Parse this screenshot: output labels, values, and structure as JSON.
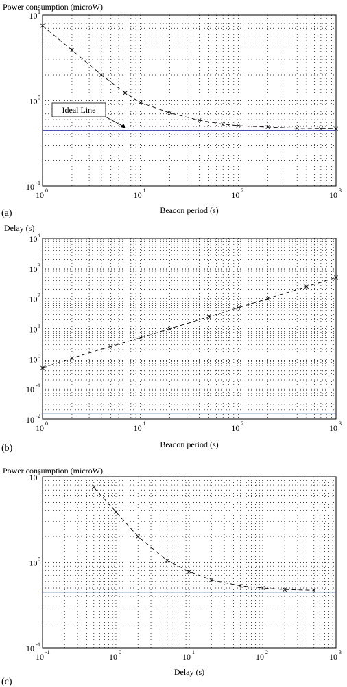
{
  "colors": {
    "ideal_line": "#2b3aa8",
    "grid": "#000000",
    "series": "#000000",
    "background": "#ffffff"
  },
  "chart_data": [
    {
      "type": "line",
      "panel_label": "(a)",
      "title": "",
      "ylabel": "Power consumption (microW)",
      "xlabel": "Beacon period (s)",
      "x_scale": "log",
      "y_scale": "log",
      "xlim": [
        1,
        1000
      ],
      "ylim": [
        0.1,
        10
      ],
      "x_ticks": [
        {
          "base": "10",
          "exp": "0"
        },
        {
          "base": "10",
          "exp": "1"
        },
        {
          "base": "10",
          "exp": "2"
        },
        {
          "base": "10",
          "exp": "3"
        }
      ],
      "y_ticks": [
        {
          "base": "10",
          "exp": "-1"
        },
        {
          "base": "10",
          "exp": "0"
        },
        {
          "base": "10",
          "exp": "1"
        }
      ],
      "grid": true,
      "annotation": {
        "text": "Ideal Line",
        "points_to": [
          8,
          0.45
        ]
      },
      "series": [
        {
          "style": "dashed-x",
          "x": [
            1,
            2,
            4,
            7,
            10,
            20,
            40,
            70,
            100,
            200,
            400,
            700,
            1000
          ],
          "y": [
            7.5,
            3.9,
            2.0,
            1.23,
            0.95,
            0.72,
            0.59,
            0.53,
            0.51,
            0.49,
            0.475,
            0.47,
            0.47
          ]
        },
        {
          "style": "ideal",
          "x": [
            1,
            1000
          ],
          "y": [
            0.45,
            0.45
          ]
        }
      ]
    },
    {
      "type": "line",
      "panel_label": "(b)",
      "title": "",
      "ylabel": "Delay (s)",
      "xlabel": "Beacon period (s)",
      "x_scale": "log",
      "y_scale": "log",
      "xlim": [
        1,
        1000
      ],
      "ylim": [
        0.01,
        10000
      ],
      "x_ticks": [
        {
          "base": "10",
          "exp": "0"
        },
        {
          "base": "10",
          "exp": "1"
        },
        {
          "base": "10",
          "exp": "2"
        },
        {
          "base": "10",
          "exp": "3"
        }
      ],
      "y_ticks": [
        {
          "base": "10",
          "exp": "-2"
        },
        {
          "base": "10",
          "exp": "-1"
        },
        {
          "base": "10",
          "exp": "0"
        },
        {
          "base": "10",
          "exp": "1"
        },
        {
          "base": "10",
          "exp": "2"
        },
        {
          "base": "10",
          "exp": "3"
        },
        {
          "base": "10",
          "exp": "4"
        }
      ],
      "grid": true,
      "series": [
        {
          "style": "dashed-x",
          "x": [
            1,
            2,
            5,
            10,
            20,
            50,
            100,
            200,
            500,
            1000
          ],
          "y": [
            0.5,
            1.05,
            2.6,
            5,
            10,
            25,
            50,
            100,
            250,
            500
          ]
        },
        {
          "style": "ideal",
          "x": [
            1,
            1000
          ],
          "y": [
            0.015,
            0.015
          ]
        }
      ]
    },
    {
      "type": "line",
      "panel_label": "(c)",
      "title": "",
      "ylabel": "Power consumption (microW)",
      "xlabel": "Delay (s)",
      "x_scale": "log",
      "y_scale": "log",
      "xlim": [
        0.1,
        1000
      ],
      "ylim": [
        0.1,
        10
      ],
      "x_ticks": [
        {
          "base": "10",
          "exp": "-1"
        },
        {
          "base": "10",
          "exp": "0"
        },
        {
          "base": "10",
          "exp": "1"
        },
        {
          "base": "10",
          "exp": "2"
        },
        {
          "base": "10",
          "exp": "3"
        }
      ],
      "y_ticks": [
        {
          "base": "10",
          "exp": "-1"
        },
        {
          "base": "10",
          "exp": "0"
        },
        {
          "base": "10",
          "exp": "1"
        }
      ],
      "grid": true,
      "series": [
        {
          "style": "dashed-x",
          "x": [
            0.5,
            1,
            2,
            5,
            10,
            20,
            50,
            100,
            200,
            500
          ],
          "y": [
            7.5,
            3.9,
            2.0,
            1.05,
            0.78,
            0.62,
            0.53,
            0.5,
            0.48,
            0.47
          ]
        },
        {
          "style": "ideal",
          "x": [
            0.1,
            1000
          ],
          "y": [
            0.45,
            0.45
          ]
        }
      ]
    }
  ]
}
